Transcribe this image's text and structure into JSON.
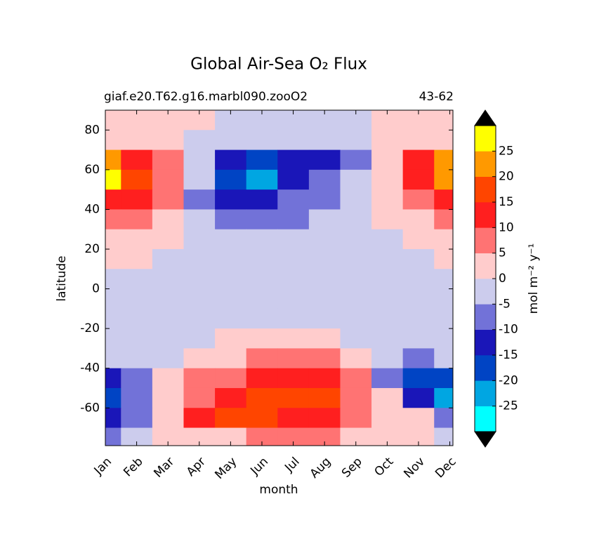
{
  "chart_data": {
    "type": "contour",
    "title": "Global Air-Sea O₂ Flux",
    "subtitle_left": "giaf.e20.T62.g16.marbl090.zooO2",
    "subtitle_right": "43-62",
    "x_label": "month",
    "y_label": "latitude",
    "colorbar_label": "mol m⁻² y⁻¹",
    "categories": [
      "Jan",
      "Feb",
      "Mar",
      "Apr",
      "May",
      "Jun",
      "Jul",
      "Aug",
      "Sep",
      "Oct",
      "Nov",
      "Dec"
    ],
    "y": [
      85,
      75,
      65,
      55,
      45,
      35,
      25,
      15,
      5,
      -5,
      -15,
      -25,
      -35,
      -45,
      -55,
      -65,
      -75
    ],
    "z": [
      [
        2,
        2,
        2,
        2,
        -2,
        -2,
        -2,
        -2,
        -2,
        2,
        2,
        2
      ],
      [
        3,
        3,
        2,
        -2,
        -3,
        -3,
        -3,
        -3,
        -2,
        3,
        3,
        3
      ],
      [
        24,
        12,
        7,
        -3,
        -12,
        -18,
        -14,
        -12,
        -7,
        3,
        12,
        22
      ],
      [
        27,
        18,
        6,
        -4,
        -18,
        -22,
        -14,
        -8,
        -3,
        3,
        12,
        22
      ],
      [
        12,
        13,
        5,
        -8,
        -15,
        -13,
        -8,
        -7,
        -3,
        2,
        8,
        12
      ],
      [
        8,
        6,
        3,
        -2,
        -7,
        -7,
        -7,
        -3,
        -2,
        1,
        4,
        7
      ],
      [
        2,
        2,
        2,
        -1,
        -2,
        -2,
        -2,
        -2,
        -2,
        -1,
        2,
        2
      ],
      [
        1,
        1,
        -1,
        -2,
        -2,
        -2,
        -2,
        -2,
        -2,
        -2,
        -1,
        1
      ],
      [
        -1,
        -2,
        -2,
        -2,
        -2,
        -2,
        -2,
        -2,
        -2,
        -2,
        -2,
        -2
      ],
      [
        -2,
        -2,
        -2,
        -2,
        -2,
        -2,
        -2,
        -2,
        -2,
        -2,
        -2,
        -2
      ],
      [
        -2,
        -2,
        -2,
        -2,
        -2,
        -2,
        -2,
        -2,
        -2,
        -2,
        -2,
        -2
      ],
      [
        -2,
        -2,
        -2,
        -1,
        2,
        2,
        2,
        2,
        -1,
        -2,
        -2,
        -2
      ],
      [
        -3,
        -2,
        -1,
        2,
        4,
        6,
        7,
        6,
        3,
        -3,
        -6,
        -4
      ],
      [
        -15,
        -8,
        2,
        6,
        8,
        12,
        13,
        10,
        6,
        -8,
        -18,
        -20
      ],
      [
        -18,
        -10,
        3,
        8,
        13,
        16,
        17,
        18,
        8,
        2,
        -12,
        -22
      ],
      [
        -12,
        -7,
        4,
        12,
        16,
        17,
        14,
        12,
        6,
        3,
        1,
        -8
      ],
      [
        -7,
        -3,
        2,
        3,
        4,
        5,
        6,
        6,
        4,
        2,
        2,
        -3
      ]
    ],
    "levels": [
      -30,
      -25,
      -20,
      -15,
      -10,
      -5,
      0,
      5,
      10,
      15,
      20,
      25,
      30
    ],
    "colors": [
      "#00ffff",
      "#00a6e2",
      "#0044c4",
      "#1a16b8",
      "#7272d8",
      "#cccced",
      "#ffcccc",
      "#ff7373",
      "#ff1f1f",
      "#ff4500",
      "#ff9900",
      "#ffff00"
    ],
    "extend_colors": [
      "#000000",
      "#000000"
    ],
    "ylim": [
      -79,
      90
    ],
    "yticks": [
      -60,
      -40,
      -20,
      0,
      20,
      40,
      60,
      80
    ],
    "colorbar_ticks": [
      -25,
      -20,
      -15,
      -10,
      -5,
      0,
      5,
      10,
      15,
      20,
      25
    ]
  }
}
